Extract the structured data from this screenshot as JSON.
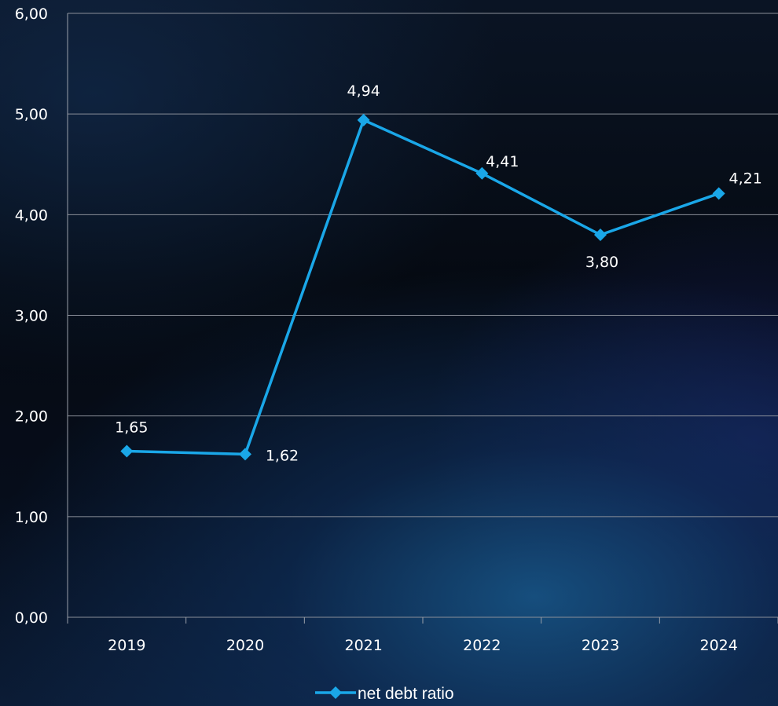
{
  "chart_data": {
    "type": "line",
    "categories": [
      "2019",
      "2020",
      "2021",
      "2022",
      "2023",
      "2024"
    ],
    "series": [
      {
        "name": "net debt ratio",
        "values": [
          1.65,
          1.62,
          4.94,
          4.41,
          3.8,
          4.21
        ],
        "labels": [
          "1,65",
          "1,62",
          "4,94",
          "4,41",
          "3,80",
          "4,21"
        ],
        "color": "#1aa7e8"
      }
    ],
    "y_ticks": [
      0,
      1,
      2,
      3,
      4,
      5,
      6
    ],
    "y_tick_labels": [
      "0,00",
      "1,00",
      "2,00",
      "3,00",
      "4,00",
      "5,00",
      "6,00"
    ],
    "ylim": [
      0,
      6
    ],
    "grid": true,
    "legend_position": "bottom",
    "colors": {
      "gridline": "#8a8f99",
      "axis": "#9aa0aa",
      "text": "#ffffff"
    }
  }
}
